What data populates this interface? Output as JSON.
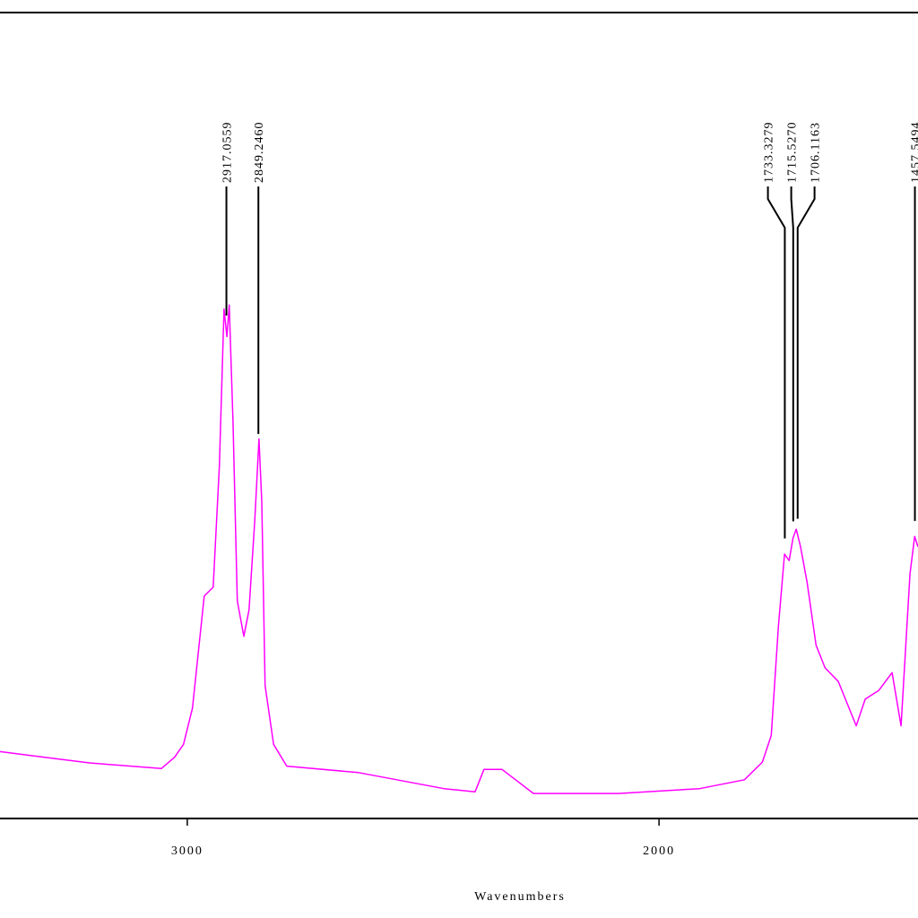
{
  "chart_data": {
    "type": "line",
    "x_label": "Wavenumbers",
    "xlim": [
      3397,
      1451
    ],
    "ylim": [
      0,
      100
    ],
    "xticks": [
      3000,
      2000
    ],
    "series": [
      {
        "color": "#ff00ff",
        "x": [
          3397,
          3302,
          3207,
          3055,
          3027,
          3008,
          2989,
          2964,
          2945,
          2932,
          2922,
          2916,
          2911,
          2903,
          2894,
          2880,
          2869,
          2857,
          2848,
          2842,
          2835,
          2817,
          2789,
          2637,
          2456,
          2390,
          2371,
          2333,
          2304,
          2266,
          2086,
          1914,
          1819,
          1781,
          1762,
          1747,
          1734,
          1724,
          1716,
          1709,
          1700,
          1686,
          1667,
          1648,
          1620,
          1582,
          1563,
          1534,
          1506,
          1487,
          1468,
          1458,
          1451
        ],
        "values": [
          8.3,
          7.6,
          6.9,
          6.2,
          7.6,
          9.2,
          13.7,
          27.6,
          28.7,
          43.7,
          63.2,
          59.8,
          63.7,
          49.3,
          27.0,
          22.6,
          25.9,
          37.0,
          47.1,
          39.3,
          16.5,
          9.2,
          6.5,
          5.7,
          3.7,
          3.3,
          6.1,
          6.1,
          4.8,
          3.1,
          3.1,
          3.7,
          4.8,
          7.0,
          10.3,
          23.7,
          32.8,
          32.0,
          34.8,
          35.9,
          33.7,
          29.3,
          21.5,
          18.7,
          17.0,
          11.5,
          14.8,
          15.9,
          18.1,
          11.5,
          30.4,
          35.0,
          33.7
        ]
      }
    ],
    "peaks": [
      2917.0559,
      {
        "value": 2849.246,
        "label": "2849.2460"
      },
      1733.3279,
      {
        "value": 1715.527,
        "label": "1715.5270"
      },
      1706.1163,
      1457.5494
    ]
  }
}
